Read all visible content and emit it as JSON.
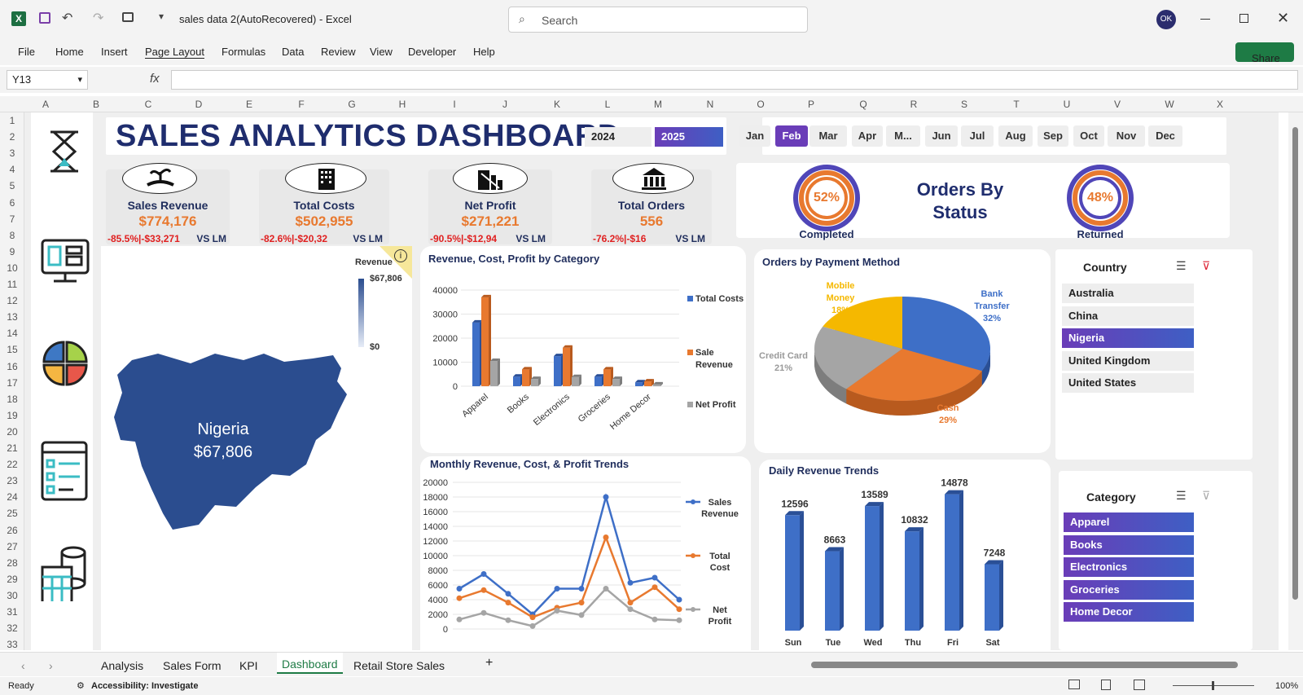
{
  "window": {
    "title": "sales data 2(AutoRecovered)  -  Excel",
    "search_placeholder": "Search",
    "avatar": "OK",
    "share": "Share"
  },
  "menu": [
    "File",
    "Home",
    "Insert",
    "Page Layout",
    "Formulas",
    "Data",
    "Review",
    "View",
    "Developer",
    "Help"
  ],
  "namebox": "Y13",
  "columns": [
    "A",
    "B",
    "C",
    "D",
    "E",
    "F",
    "G",
    "H",
    "I",
    "J",
    "K",
    "L",
    "M",
    "N",
    "O",
    "P",
    "Q",
    "R",
    "S",
    "T",
    "U",
    "V",
    "W",
    "X"
  ],
  "rows": [
    "1",
    "2",
    "3",
    "4",
    "5",
    "6",
    "7",
    "8",
    "9",
    "10",
    "11",
    "12",
    "13",
    "14",
    "15",
    "16",
    "17",
    "18",
    "19",
    "20",
    "21",
    "22",
    "23",
    "24",
    "25",
    "26",
    "27",
    "28",
    "29",
    "30",
    "31",
    "32",
    "33"
  ],
  "dashboard": {
    "title": "SALES ANALYTICS DASHBOARD",
    "years": [
      "2024",
      "2025"
    ],
    "months": [
      "Jan",
      "Feb",
      "Mar",
      "Apr",
      "M...",
      "Jun",
      "Jul",
      "Aug",
      "Sep",
      "Oct",
      "Nov",
      "Dec"
    ],
    "kpis": [
      {
        "label": "Sales Revenue",
        "value": "$774,176",
        "change": "-85.5%|-$33,271",
        "vs": "VS LM"
      },
      {
        "label": "Total Costs",
        "value": "$502,955",
        "change": "-82.6%|-$20,32",
        "vs": "VS LM"
      },
      {
        "label": "Net Profit",
        "value": "$271,221",
        "change": "-90.5%|-$12,94",
        "vs": "VS LM"
      },
      {
        "label": "Total Orders",
        "value": "556",
        "change": "-76.2%|-$16",
        "vs": "VS LM"
      }
    ],
    "orders_status": {
      "title_line1": "Orders  By",
      "title_line2": "Status",
      "completed_pct": "52%",
      "completed_label": "Completed",
      "returned_pct": "48%",
      "returned_label": "Returned"
    },
    "map": {
      "legend_title": "Revenue",
      "legend_max": "$67,806",
      "legend_min": "$0",
      "country": "Nigeria",
      "value": "$67,806",
      "info": "i"
    },
    "country_slicer": {
      "title": "Country",
      "items": [
        "Australia",
        "China",
        "Nigeria",
        "United Kingdom",
        "United States"
      ],
      "selected": "Nigeria"
    },
    "category_slicer": {
      "title": "Category",
      "items": [
        "Apparel",
        "Books",
        "Electronics",
        "Groceries",
        "Home Decor"
      ]
    }
  },
  "chart_data": [
    {
      "type": "bar",
      "title": "Revenue, Cost, Profit by Category",
      "categories": [
        "Apparel",
        "Books",
        "Electronics",
        "Groceries",
        "Home Decor"
      ],
      "series": [
        {
          "name": "Total Costs",
          "values": [
            26500,
            4000,
            12500,
            4000,
            1600
          ]
        },
        {
          "name": "Sale Revenue",
          "values": [
            37000,
            7000,
            16000,
            7000,
            2000
          ]
        },
        {
          "name": "Net Profit",
          "values": [
            10500,
            3000,
            3800,
            3000,
            700
          ]
        }
      ],
      "yticks": [
        "0",
        "10000",
        "20000",
        "30000",
        "40000"
      ],
      "ylim": [
        0,
        40000
      ]
    },
    {
      "type": "pie",
      "title": "Orders by Payment Method",
      "slices": [
        {
          "name": "Bank Transfer",
          "pct": 32,
          "label": "32%"
        },
        {
          "name": "Cash",
          "pct": 29,
          "label": "29%"
        },
        {
          "name": "Credit Card",
          "pct": 21,
          "label": "21%"
        },
        {
          "name": "Mobile Money",
          "pct": 18,
          "label": "18%"
        }
      ]
    },
    {
      "type": "line",
      "title": "Monthly Revenue, Cost, & Profit Trends",
      "yticks": [
        "0",
        "2000",
        "4000",
        "6000",
        "8000",
        "10000",
        "12000",
        "14000",
        "16000",
        "18000",
        "20000"
      ],
      "ylim": [
        0,
        20000
      ],
      "series": [
        {
          "name": "Sales Revenue",
          "values": [
            5500,
            7500,
            4800,
            2000,
            5500,
            5500,
            18000,
            6300,
            7000,
            4000
          ]
        },
        {
          "name": "Total Cost",
          "values": [
            4200,
            5300,
            3600,
            1600,
            2900,
            3600,
            12500,
            3600,
            5700,
            2700
          ]
        },
        {
          "name": "Net Profit",
          "values": [
            1300,
            2200,
            1200,
            400,
            2500,
            1900,
            5500,
            2700,
            1300,
            1200
          ]
        }
      ]
    },
    {
      "type": "bar",
      "title": "Daily Revenue Trends",
      "categories": [
        "Sun",
        "Tue",
        "Wed",
        "Thu",
        "Fri",
        "Sat"
      ],
      "values": [
        12596,
        8663,
        13589,
        10832,
        14878,
        7248
      ],
      "labels": [
        "12596",
        "8663",
        "13589",
        "10832",
        "14878",
        "7248"
      ],
      "ylim": [
        0,
        16000
      ]
    }
  ],
  "sheet_tabs": [
    "Analysis",
    "Sales Form",
    "KPI",
    "Dashboard",
    "Retail Store Sales"
  ],
  "active_tab": "Dashboard",
  "status": {
    "ready": "Ready",
    "accessibility": "Accessibility: Investigate",
    "zoom": "100%"
  }
}
